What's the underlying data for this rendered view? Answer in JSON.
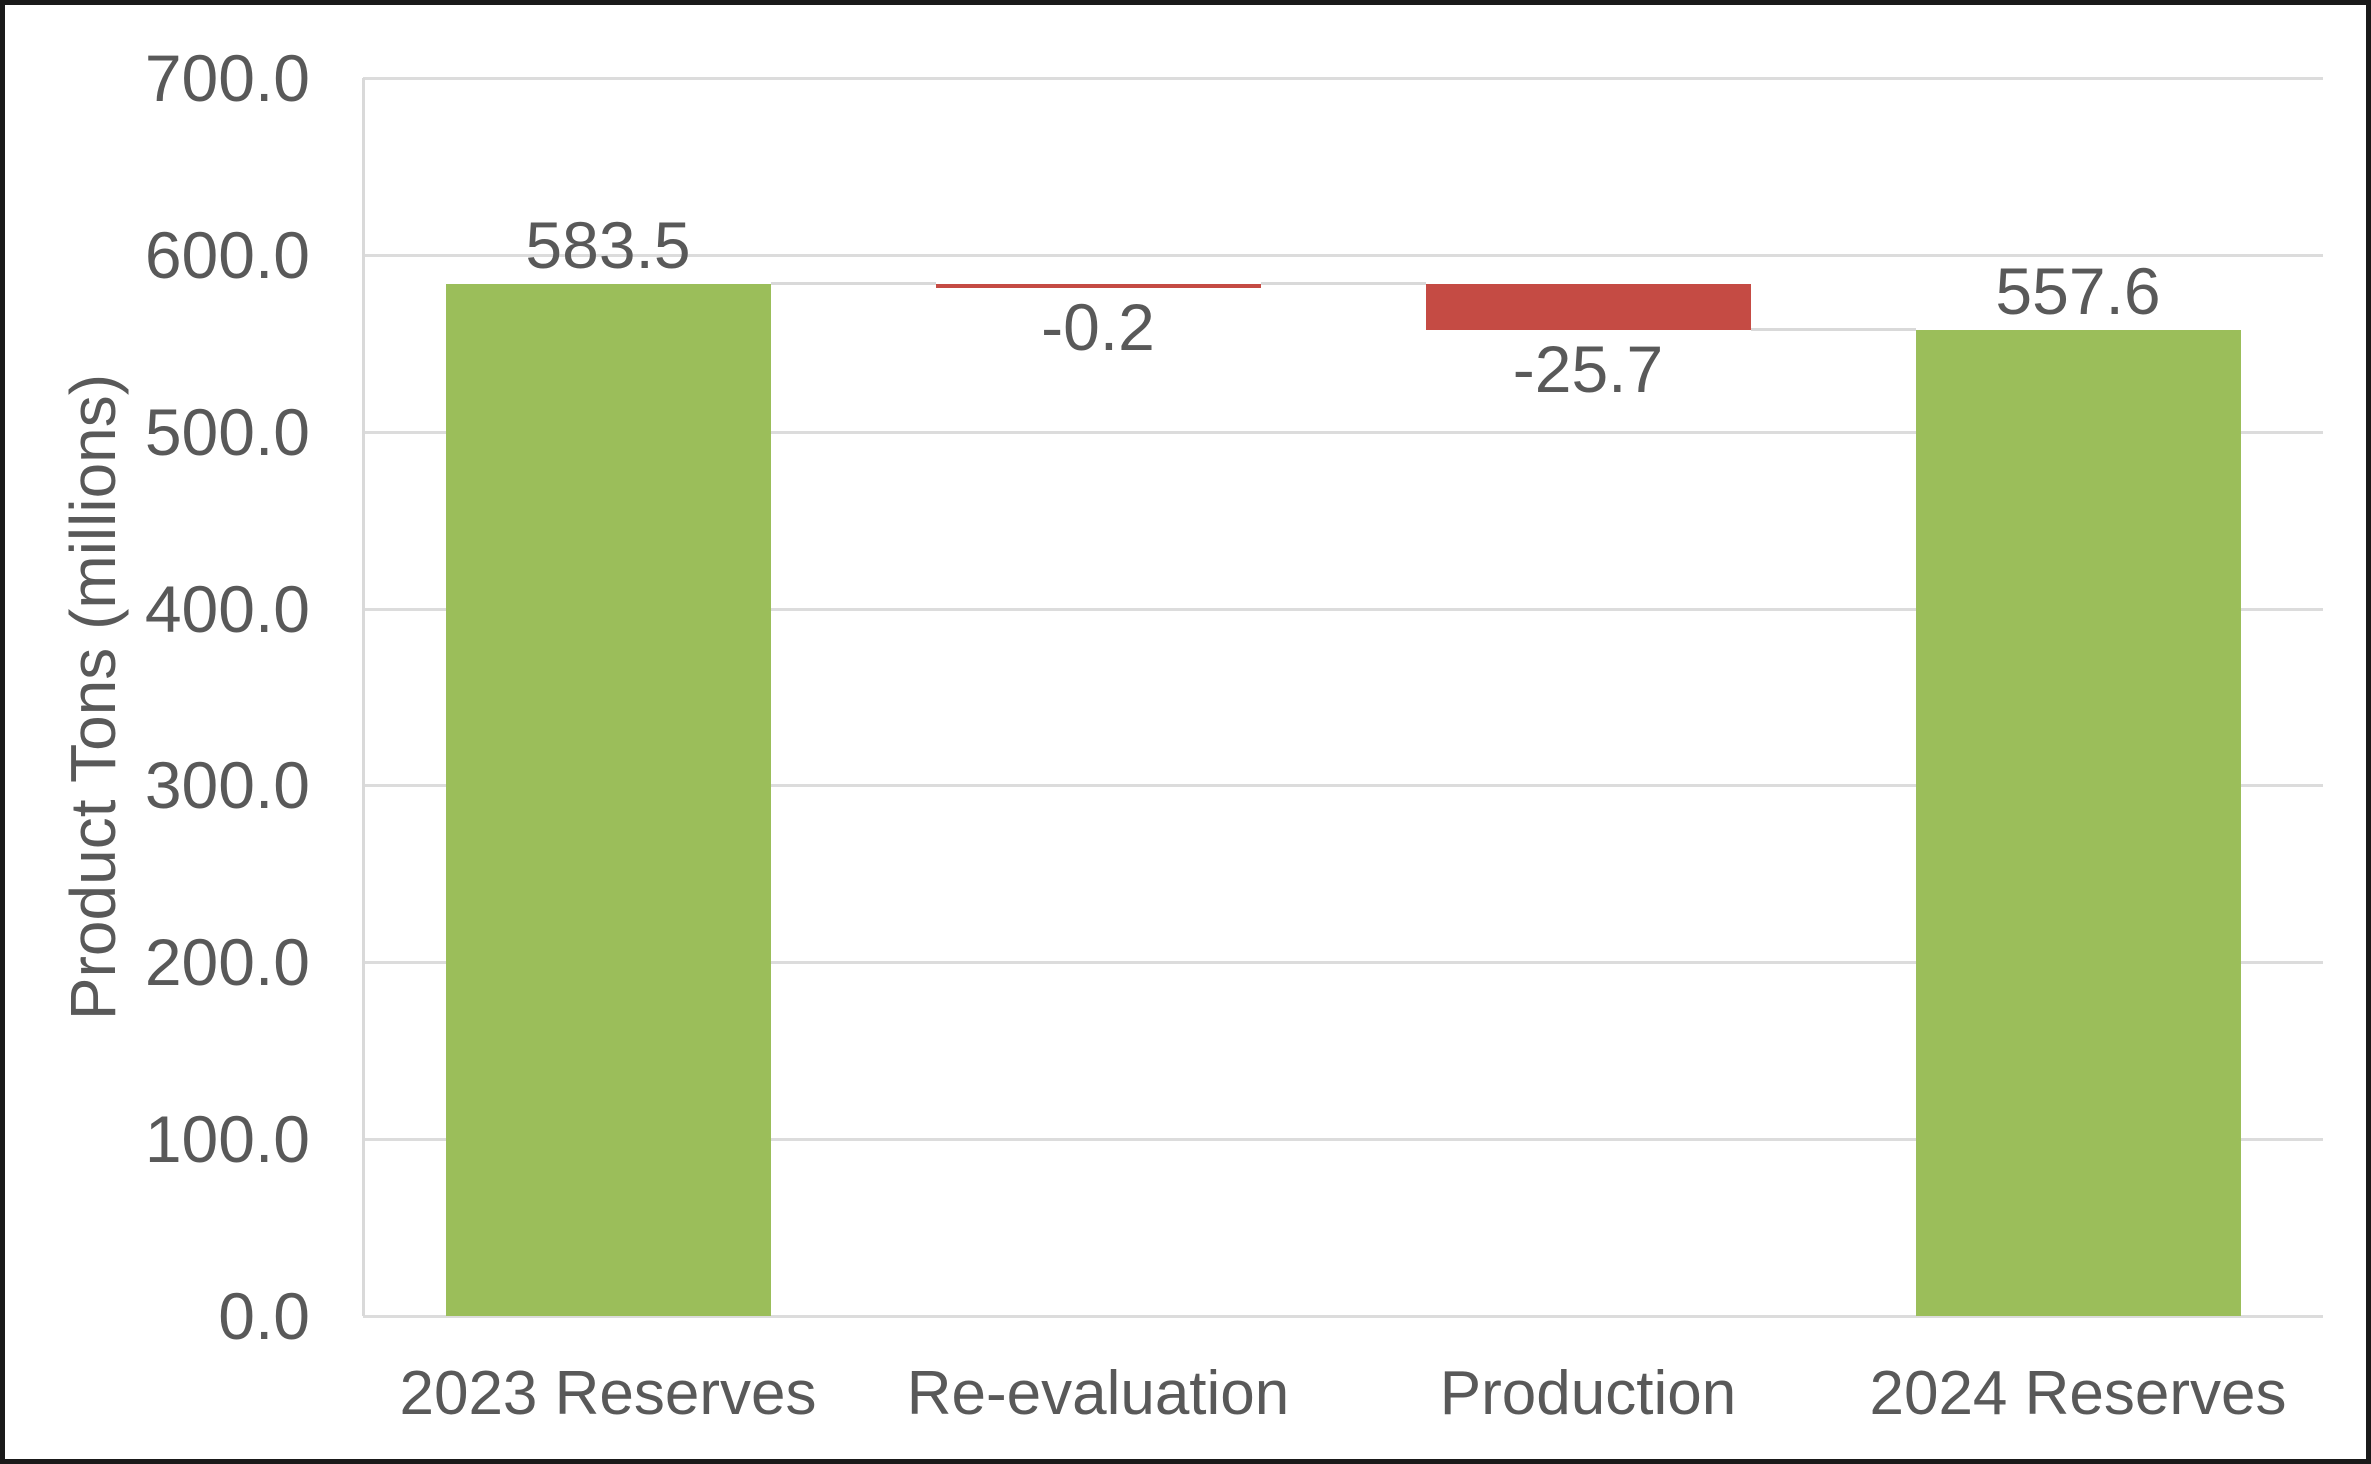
{
  "chart_data": {
    "type": "bar",
    "subtype": "waterfall",
    "title": "",
    "xlabel": "",
    "ylabel": "Product Tons (millions)",
    "ylim": [
      0,
      700
    ],
    "ytick_step": 100,
    "yticks": [
      "700.0",
      "600.0",
      "500.0",
      "400.0",
      "300.0",
      "200.0",
      "100.0",
      "0.0"
    ],
    "grid": true,
    "legend": false,
    "categories": [
      "2023 Reserves",
      "Re-evaluation",
      "Production",
      "2024 Reserves"
    ],
    "values": [
      583.5,
      -0.2,
      -25.7,
      557.6
    ],
    "bars": [
      {
        "category": "2023 Reserves",
        "value": 583.5,
        "label": "583.5",
        "start": 0,
        "end": 583.5,
        "kind": "total",
        "label_position": "above"
      },
      {
        "category": "Re-evaluation",
        "value": -0.2,
        "label": "-0.2",
        "start": 583.5,
        "end": 583.3,
        "kind": "decrease",
        "label_position": "below"
      },
      {
        "category": "Production",
        "value": -25.7,
        "label": "-25.7",
        "start": 583.3,
        "end": 557.6,
        "kind": "decrease",
        "label_position": "below"
      },
      {
        "category": "2024 Reserves",
        "value": 557.6,
        "label": "557.6",
        "start": 0,
        "end": 557.6,
        "kind": "total",
        "label_position": "above"
      }
    ],
    "colors": {
      "total": "#9bbe5a",
      "decrease": "#c54b44",
      "gridline": "#dcdcdc",
      "connector": "#d9d9d9",
      "axis_line": "#d9d9d9",
      "text": "#595959",
      "frame": "#1a1a1a"
    }
  }
}
